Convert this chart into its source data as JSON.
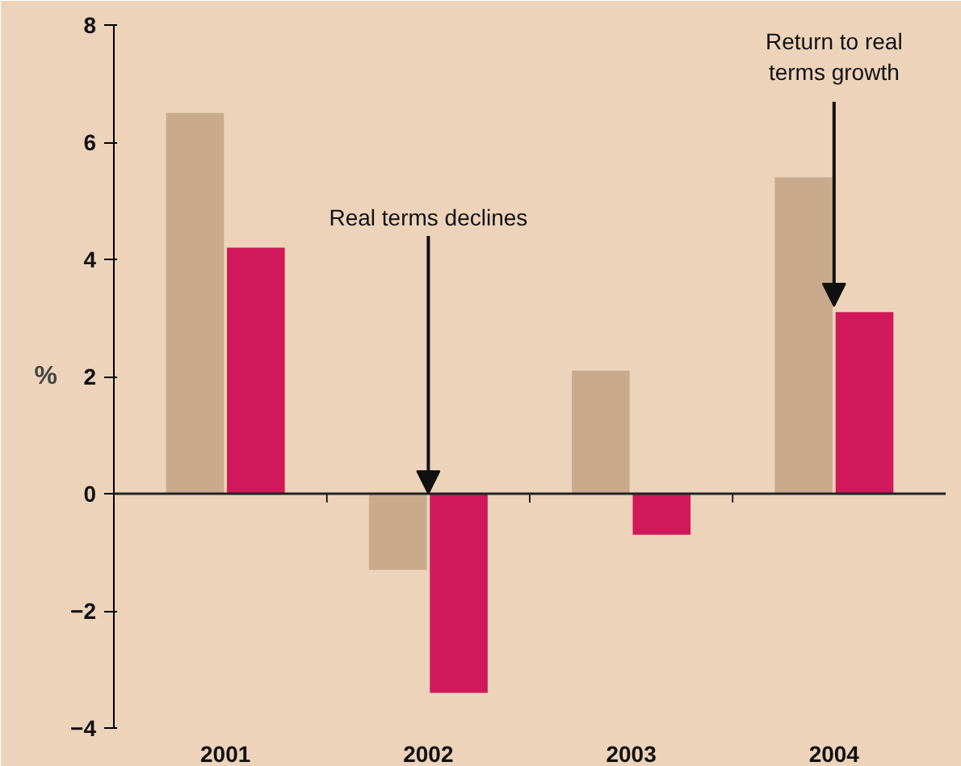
{
  "chart_data": {
    "type": "bar",
    "ylabel": "%",
    "categories": [
      "2001",
      "2002",
      "2003",
      "2004"
    ],
    "series": [
      {
        "color": "#c9aa8c",
        "values": [
          6.5,
          -1.3,
          2.1,
          5.4
        ]
      },
      {
        "color": "#d0185a",
        "values": [
          4.2,
          -3.4,
          -0.7,
          3.1
        ]
      }
    ],
    "ylim": [
      -4,
      8
    ],
    "yticks": [
      -4,
      -2,
      0,
      2,
      4,
      6,
      8
    ],
    "annotations": [
      {
        "text": "Real terms declines",
        "x": "2002",
        "y": 0
      },
      {
        "text": "Return to real\nterms growth",
        "x": "2004",
        "y": 3.1
      }
    ]
  }
}
